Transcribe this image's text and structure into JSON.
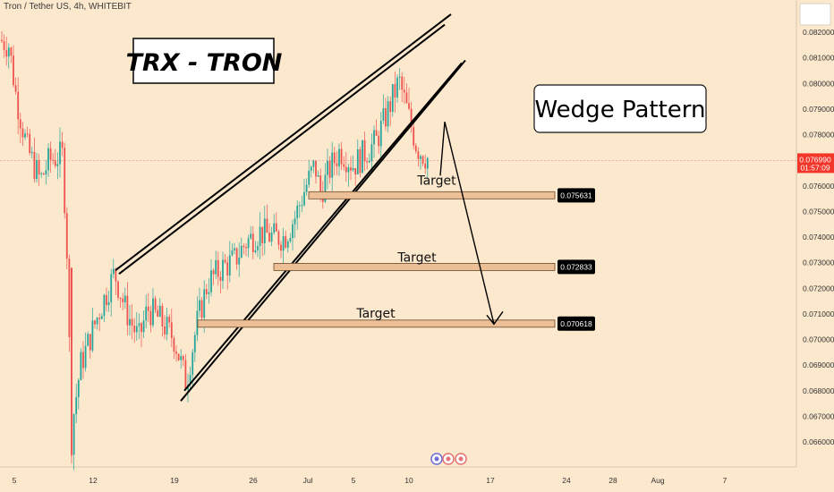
{
  "header": {
    "symbol_title": "Tron / Tether US, 4h, WHITEBIT"
  },
  "annotations": {
    "title_box": "TRX - TRON",
    "pattern_box": "Wedge Pattern",
    "target_label": "Target"
  },
  "chart_data": {
    "type": "candlestick",
    "title": "Tron / Tether US, 4h, WHITEBIT",
    "ylim": [
      0.0653,
      0.0827
    ],
    "y_ticks": [
      "0.082000",
      "0.081000",
      "0.080000",
      "0.079000",
      "0.078000",
      "0.076000",
      "0.075000",
      "0.074000",
      "0.073000",
      "0.072000",
      "0.071000",
      "0.070000",
      "0.069000",
      "0.068000",
      "0.067000",
      "0.066000"
    ],
    "x_ticks": [
      "5",
      "12",
      "19",
      "26",
      "Jul",
      "5",
      "10",
      "17",
      "24",
      "28",
      "Aug",
      "7"
    ],
    "current_price": "0.076990",
    "countdown": "01:57:09",
    "targets": [
      {
        "label": "Target",
        "price": "0.075631"
      },
      {
        "label": "Target",
        "price": "0.072833"
      },
      {
        "label": "Target",
        "price": "0.070618"
      }
    ],
    "wedge": {
      "upper_line": [
        [
          0.0727,
          129
        ],
        [
          0.0827,
          504
        ]
      ],
      "lower_line": [
        [
          0.0676,
          202
        ],
        [
          0.0809,
          520
        ]
      ],
      "lower_line_2": [
        [
          0.068,
          206
        ],
        [
          0.0808,
          516
        ]
      ]
    },
    "projection": [
      {
        "x": 492,
        "y": 0.0764
      },
      {
        "x": 497,
        "y": 0.0785
      },
      {
        "x": 552,
        "y": 0.0706
      }
    ],
    "grid": false,
    "colors": {
      "background": "#fbe8cd",
      "up": "#26a69a",
      "down": "#ef5350",
      "target_zone": "#edbf96",
      "current_price_tag": "#f2362a",
      "target_tag": "#000000"
    }
  }
}
